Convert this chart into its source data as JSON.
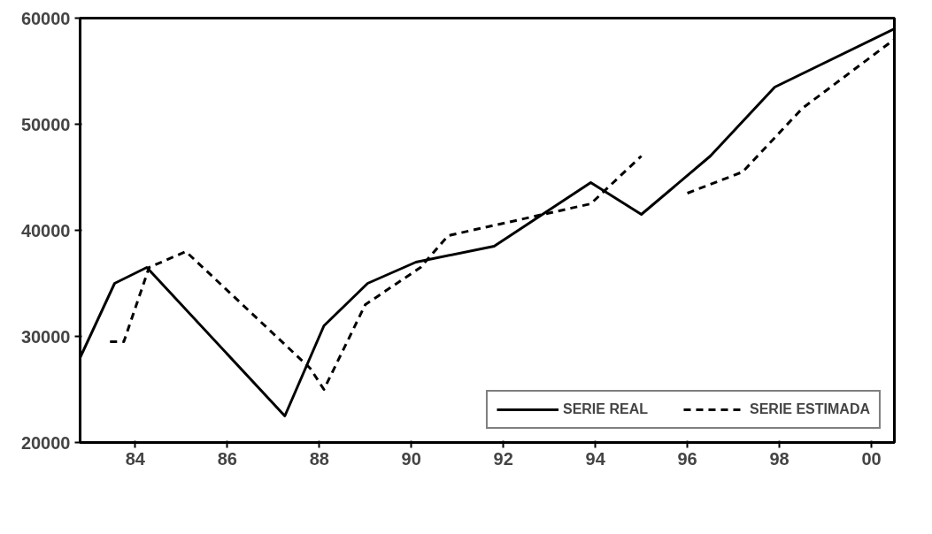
{
  "chart_data": {
    "type": "line",
    "xlim": [
      1982.8,
      2000.5
    ],
    "ylim": [
      20000,
      60000
    ],
    "xticks": [
      {
        "value": 1984,
        "label": "84"
      },
      {
        "value": 1986,
        "label": "86"
      },
      {
        "value": 1988,
        "label": "88"
      },
      {
        "value": 1990,
        "label": "90"
      },
      {
        "value": 1992,
        "label": "92"
      },
      {
        "value": 1994,
        "label": "94"
      },
      {
        "value": 1996,
        "label": "96"
      },
      {
        "value": 1998,
        "label": "98"
      },
      {
        "value": 2000,
        "label": "00"
      }
    ],
    "yticks": [
      20000,
      30000,
      40000,
      50000,
      60000
    ],
    "grid": false,
    "legend": "bottom right",
    "marker": "none",
    "series": [
      {
        "name": "SERIE REAL",
        "color": "#000000",
        "line_style": "solid",
        "x": [
          1982.8,
          1983.55,
          1984.25,
          1987.25,
          1988.1,
          1989.05,
          1990.1,
          1991.8,
          1993.9,
          1995.0,
          1996.5,
          1997.9,
          2000.5
        ],
        "values": [
          28000,
          35000,
          36500,
          22500,
          31000,
          35000,
          37000,
          38500,
          44500,
          41500,
          47000,
          53500,
          59000
        ]
      },
      {
        "name": "SERIE ESTIMADA",
        "color": "#000000",
        "line_style": "dashed",
        "x": [
          1983.45,
          1983.75,
          1984.3,
          1985.1,
          1987.8,
          1988.1,
          1989.0,
          1990.2,
          1990.8,
          1993.9,
          1995.0,
          1995.3,
          1996.0,
          1997.2,
          1998.5,
          2000.5
        ],
        "values": [
          29500,
          29500,
          36500,
          38000,
          27000,
          25000,
          33000,
          36500,
          39500,
          42500,
          47000,
          null,
          43500,
          45500,
          51500,
          58000
        ]
      }
    ]
  }
}
